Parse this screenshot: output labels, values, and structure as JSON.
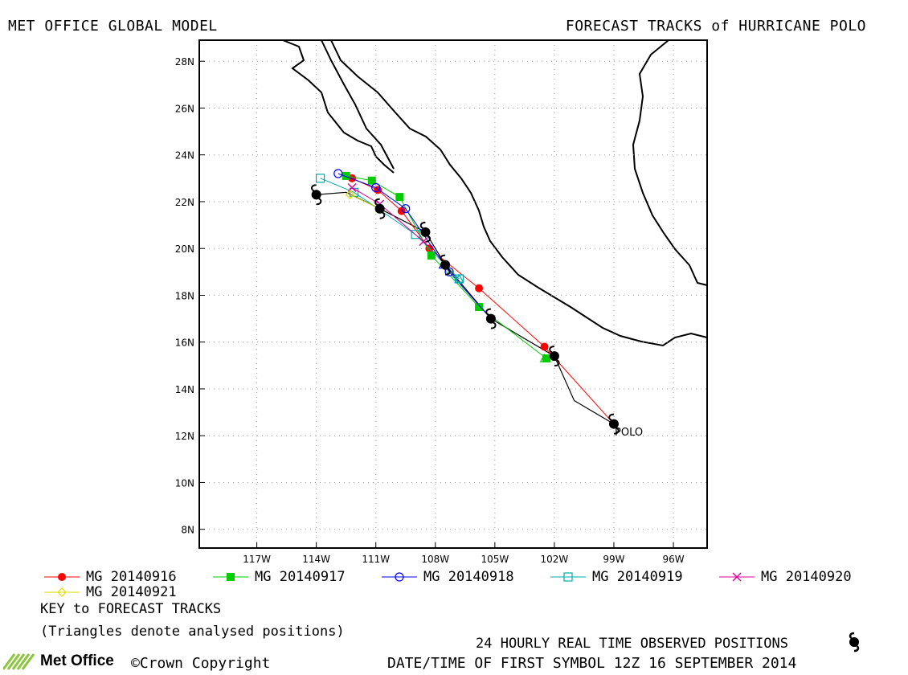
{
  "header": {
    "left_title": "MET OFFICE GLOBAL MODEL",
    "right_title": "FORECAST TRACKS of HURRICANE POLO"
  },
  "map": {
    "lat_labels": [
      "28N",
      "26N",
      "24N",
      "22N",
      "20N",
      "18N",
      "16N",
      "14N",
      "12N",
      "10N",
      "8N"
    ],
    "lon_labels": [
      "117W",
      "114W",
      "111W",
      "108W",
      "105W",
      "102W",
      "99W",
      "96W"
    ],
    "storm_label": "POLO",
    "observed_positions": [
      {
        "lat": 12.5,
        "lon": -99.0
      },
      {
        "lat": 15.4,
        "lon": -102.0
      },
      {
        "lat": 17.0,
        "lon": -105.2
      },
      {
        "lat": 19.3,
        "lon": -107.5
      },
      {
        "lat": 20.7,
        "lon": -108.5
      },
      {
        "lat": 21.7,
        "lon": -110.8
      },
      {
        "lat": 22.3,
        "lon": -114.0
      }
    ],
    "observed_track": [
      {
        "lat": 12.5,
        "lon": -99.0
      },
      {
        "lat": 13.5,
        "lon": -101.0
      },
      {
        "lat": 15.4,
        "lon": -102.0
      },
      {
        "lat": 17.0,
        "lon": -105.2
      },
      {
        "lat": 19.3,
        "lon": -107.5
      },
      {
        "lat": 20.7,
        "lon": -108.5
      },
      {
        "lat": 21.7,
        "lon": -110.8
      },
      {
        "lat": 22.4,
        "lon": -112.5
      },
      {
        "lat": 22.3,
        "lon": -114.0
      }
    ]
  },
  "tracks": [
    {
      "name": "MG 20140916",
      "color": "#ff0000",
      "marker": "filled-circle",
      "points": [
        {
          "lat": 12.5,
          "lon": -99.0
        },
        {
          "lat": 15.8,
          "lon": -102.5
        },
        {
          "lat": 18.3,
          "lon": -105.8
        },
        {
          "lat": 20.0,
          "lon": -108.3
        },
        {
          "lat": 21.6,
          "lon": -109.7
        },
        {
          "lat": 22.5,
          "lon": -110.9
        },
        {
          "lat": 23.0,
          "lon": -112.2
        }
      ]
    },
    {
      "name": "MG 20140917",
      "color": "#00cc00",
      "marker": "filled-square",
      "points": [
        {
          "lat": 15.3,
          "lon": -102.4
        },
        {
          "lat": 17.5,
          "lon": -105.8
        },
        {
          "lat": 19.7,
          "lon": -108.2
        },
        {
          "lat": 22.2,
          "lon": -109.8
        },
        {
          "lat": 22.9,
          "lon": -111.2
        },
        {
          "lat": 23.1,
          "lon": -112.5
        }
      ]
    },
    {
      "name": "MG 20140918",
      "color": "#0000ff",
      "marker": "open-circle",
      "points": [
        {
          "lat": 17.0,
          "lon": -105.2
        },
        {
          "lat": 19.0,
          "lon": -107.3
        },
        {
          "lat": 21.7,
          "lon": -109.5
        },
        {
          "lat": 22.6,
          "lon": -111.0
        },
        {
          "lat": 23.2,
          "lon": -112.9
        }
      ]
    },
    {
      "name": "MG 20140919",
      "color": "#00aaaa",
      "marker": "open-square",
      "points": [
        {
          "lat": 18.7,
          "lon": -106.8
        },
        {
          "lat": 20.6,
          "lon": -109.0
        },
        {
          "lat": 22.4,
          "lon": -112.1
        },
        {
          "lat": 23.0,
          "lon": -113.8
        }
      ]
    },
    {
      "name": "MG 20140920",
      "color": "#dd0099",
      "marker": "cross",
      "points": [
        {
          "lat": 20.3,
          "lon": -108.6
        },
        {
          "lat": 21.9,
          "lon": -110.8
        },
        {
          "lat": 22.6,
          "lon": -112.2
        }
      ]
    },
    {
      "name": "MG 20140921",
      "color": "#dddd00",
      "marker": "open-diamond",
      "points": [
        {
          "lat": 21.7,
          "lon": -110.8
        },
        {
          "lat": 22.3,
          "lon": -112.3
        }
      ]
    }
  ],
  "analysed_triangles": [
    {
      "lat": 15.3,
      "lon": -102.5,
      "color": "#00cc00"
    },
    {
      "lat": 18.7,
      "lon": -106.8,
      "color": "#00aaaa"
    },
    {
      "lat": 19.3,
      "lon": -107.6,
      "color": "#0000ff"
    },
    {
      "lat": 21.7,
      "lon": -110.8,
      "color": "#dddd00"
    }
  ],
  "legend": {
    "key_title": "KEY to FORECAST TRACKS",
    "key_note": "(Triangles denote analysed positions)"
  },
  "footer": {
    "observed_label": "24 HOURLY REAL TIME OBSERVED POSITIONS",
    "first_symbol_label": "DATE/TIME OF FIRST SYMBOL 12Z 16 SEPTEMBER 2014",
    "logo_text": "Met Office",
    "copyright": "©Crown Copyright"
  }
}
